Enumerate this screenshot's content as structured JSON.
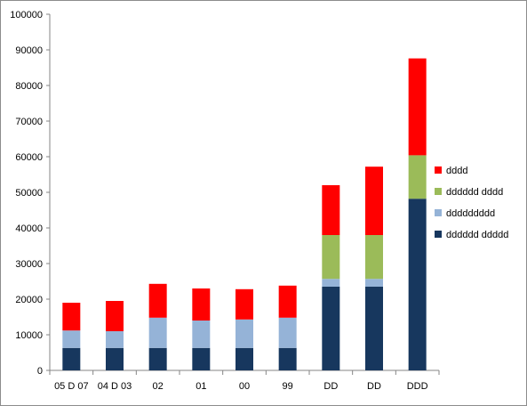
{
  "chart_data": {
    "type": "bar",
    "stacked": true,
    "title": "",
    "xlabel": "",
    "ylabel": "",
    "ylim": [
      0,
      100000
    ],
    "yticks": [
      0,
      10000,
      20000,
      30000,
      40000,
      50000,
      60000,
      70000,
      80000,
      90000,
      100000
    ],
    "grid": false,
    "legend_position": "right",
    "categories": [
      "05 D 07",
      "04 D 03",
      "02",
      "01",
      "00",
      "99",
      "DD",
      "DD",
      "DDD"
    ],
    "series": [
      {
        "name": "dddddd ddddd",
        "color": "#17375e",
        "values": [
          6300,
          6300,
          6300,
          6300,
          6300,
          6300,
          23500,
          23500,
          48200
        ]
      },
      {
        "name": "ddddddddd",
        "color": "#95b3d7",
        "values": [
          4900,
          4700,
          8500,
          7700,
          8000,
          8500,
          2200,
          2200,
          0
        ]
      },
      {
        "name": "dddddd dddd",
        "color": "#9bbb59",
        "values": [
          0,
          0,
          0,
          0,
          0,
          0,
          12300,
          12300,
          12200
        ]
      },
      {
        "name": "dddd",
        "color": "#ff0000",
        "values": [
          7800,
          8500,
          9500,
          9000,
          8500,
          9000,
          14000,
          19200,
          27200
        ]
      }
    ]
  }
}
